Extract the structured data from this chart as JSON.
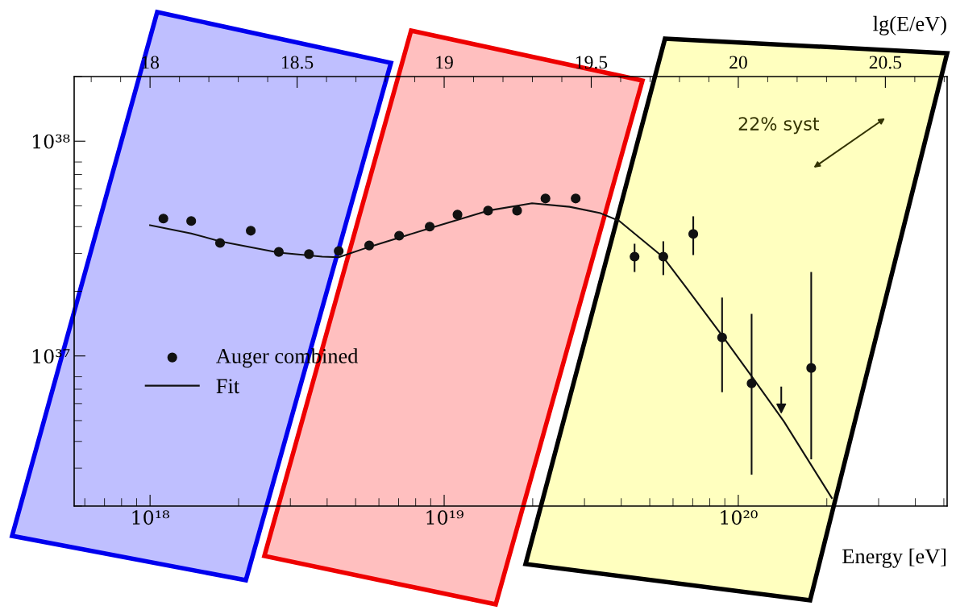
{
  "chart_data": {
    "type": "scatter",
    "xlabel": "Energy [eV]",
    "x2label": "lg(E/eV)",
    "log": "xy",
    "xlim": [
      5.52e+17,
      5.13e+20
    ],
    "xticks": [
      {
        "value": 1e+18,
        "label": "10¹⁸"
      },
      {
        "value": 1e+19,
        "label": "10¹⁹"
      },
      {
        "value": 1e+20,
        "label": "10²⁰"
      }
    ],
    "ylim": [
      2e+36,
      2e+38
    ],
    "yticks": [
      {
        "value": 1e+37,
        "label": "10³⁷"
      },
      {
        "value": 1e+38,
        "label": "10³⁸"
      }
    ],
    "x2lim": [
      17.742,
      20.71
    ],
    "x2ticks": [
      18,
      18.5,
      19,
      19.5,
      20,
      20.5
    ],
    "legend": "left",
    "grid": false,
    "annotations": [
      "22% syst"
    ],
    "series": [
      {
        "name": "Auger combined",
        "color": "#111111",
        "marker": "circle",
        "x": [
          1.11e+18,
          1.38e+18,
          1.73e+18,
          2.2e+18,
          2.74e+18,
          3.47e+18,
          4.38e+18,
          5.56e+18,
          7.03e+18,
          8.93e+18,
          1.11e+19,
          1.41e+19,
          1.77e+19,
          2.21e+19,
          2.8e+19,
          4.44e+19,
          5.56e+19,
          7.03e+19,
          8.81e+19,
          1.11e+20,
          1.77e+20
        ],
        "values": [
          4.36e+37,
          4.25e+37,
          3.36e+37,
          3.83e+37,
          3.05e+37,
          2.98e+37,
          3.08e+37,
          3.27e+37,
          3.63e+37,
          4e+37,
          4.55e+37,
          4.75e+37,
          4.75e+37,
          5.41e+37,
          5.41e+37,
          2.9e+37,
          2.9e+37,
          3.7e+37,
          1.22e+37,
          7.45e+36,
          8.79e+36
        ],
        "errors": [
          null,
          null,
          null,
          null,
          null,
          null,
          null,
          null,
          null,
          null,
          null,
          null,
          null,
          null,
          null,
          [
            2.46e+37,
            3.33e+37
          ],
          [
            2.38e+37,
            3.42e+37
          ],
          [
            2.95e+37,
            4.47e+37
          ],
          [
            6.78e+36,
            1.87e+37
          ],
          [
            2.8e+36,
            1.57e+37
          ],
          [
            3.3e+36,
            2.46e+37
          ]
        ]
      },
      {
        "color": "#111111",
        "marker": "triangle",
        "x": [
          1.4e+20
        ],
        "values": [
          5.7e+36
        ],
        "errors": [
          [
            5.7e+36,
            7.2e+36
          ]
        ]
      },
      {
        "name": "Fit",
        "type": "line",
        "color": "#111111",
        "marker": "none",
        "line_style": "solid",
        "x": [
          1e+18,
          1.38e+18,
          1.73e+18,
          2.74e+18,
          3.85e+18,
          4.38e+18,
          5.56e+18,
          8.93e+18,
          1.41e+19,
          1.99e+19,
          2.67e+19,
          3.4e+19,
          3.94e+19,
          5.56e+19,
          6.59e+19,
          8.87e+19,
          1.11e+20,
          1.43e+20,
          2.08e+20
        ],
        "values": [
          4.06e+37,
          3.72e+37,
          3.42e+37,
          3.03e+37,
          2.9e+37,
          2.88e+37,
          3.22e+37,
          3.93e+37,
          4.75e+37,
          5.14e+37,
          4.95e+37,
          4.62e+37,
          4.25e+37,
          2.88e+37,
          2.12e+37,
          1.23e+37,
          8.05e+36,
          4.95e+36,
          2.18e+36
        ]
      }
    ]
  }
}
